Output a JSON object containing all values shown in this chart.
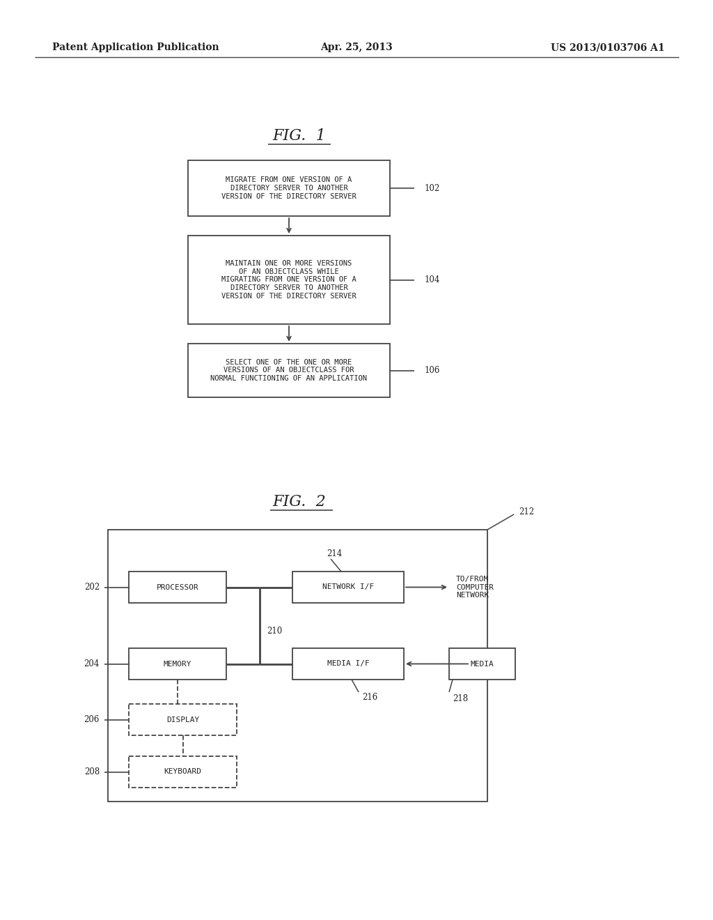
{
  "bg_color": "#ffffff",
  "header_left": "Patent Application Publication",
  "header_center": "Apr. 25, 2013",
  "header_right": "US 2013/0103706 A1",
  "fig1_title": "FIG.  1",
  "fig2_title": "FIG.  2",
  "box1_text": "MIGRATE FROM ONE VERSION OF A\nDIRECTORY SERVER TO ANOTHER\nVERSION OF THE DIRECTORY SERVER",
  "box1_label": "102",
  "box2_text": "MAINTAIN ONE OR MORE VERSIONS\nOF AN OBJECTCLASS WHILE\nMIGRATING FROM ONE VERSION OF A\nDIRECTORY SERVER TO ANOTHER\nVERSION OF THE DIRECTORY SERVER",
  "box2_label": "104",
  "box3_text": "SELECT ONE OF THE ONE OR MORE\nVERSIONS OF AN OBJECTCLASS FOR\nNORMAL FUNCTIONING OF AN APPLICATION",
  "box3_label": "106",
  "fig2_outer_label": "212",
  "proc_label": "202",
  "proc_text": "PROCESSOR",
  "bus_label": "210",
  "net_label": "214",
  "net_text": "NETWORK I/F",
  "mem_label": "204",
  "mem_text": "MEMORY",
  "media_if_label": "216",
  "media_if_text": "MEDIA I/F",
  "disp_label": "206",
  "disp_text": "DISPLAY",
  "kbd_label": "208",
  "kbd_text": "KEYBOARD",
  "ext_net_text": "TO/FROM\nCOMPUTER\nNETWORK",
  "media_text": "MEDIA",
  "media_label": "218",
  "line_color": "#444444",
  "text_color": "#222222",
  "font_mono": "DejaVu Sans Mono",
  "font_serif": "DejaVu Serif"
}
